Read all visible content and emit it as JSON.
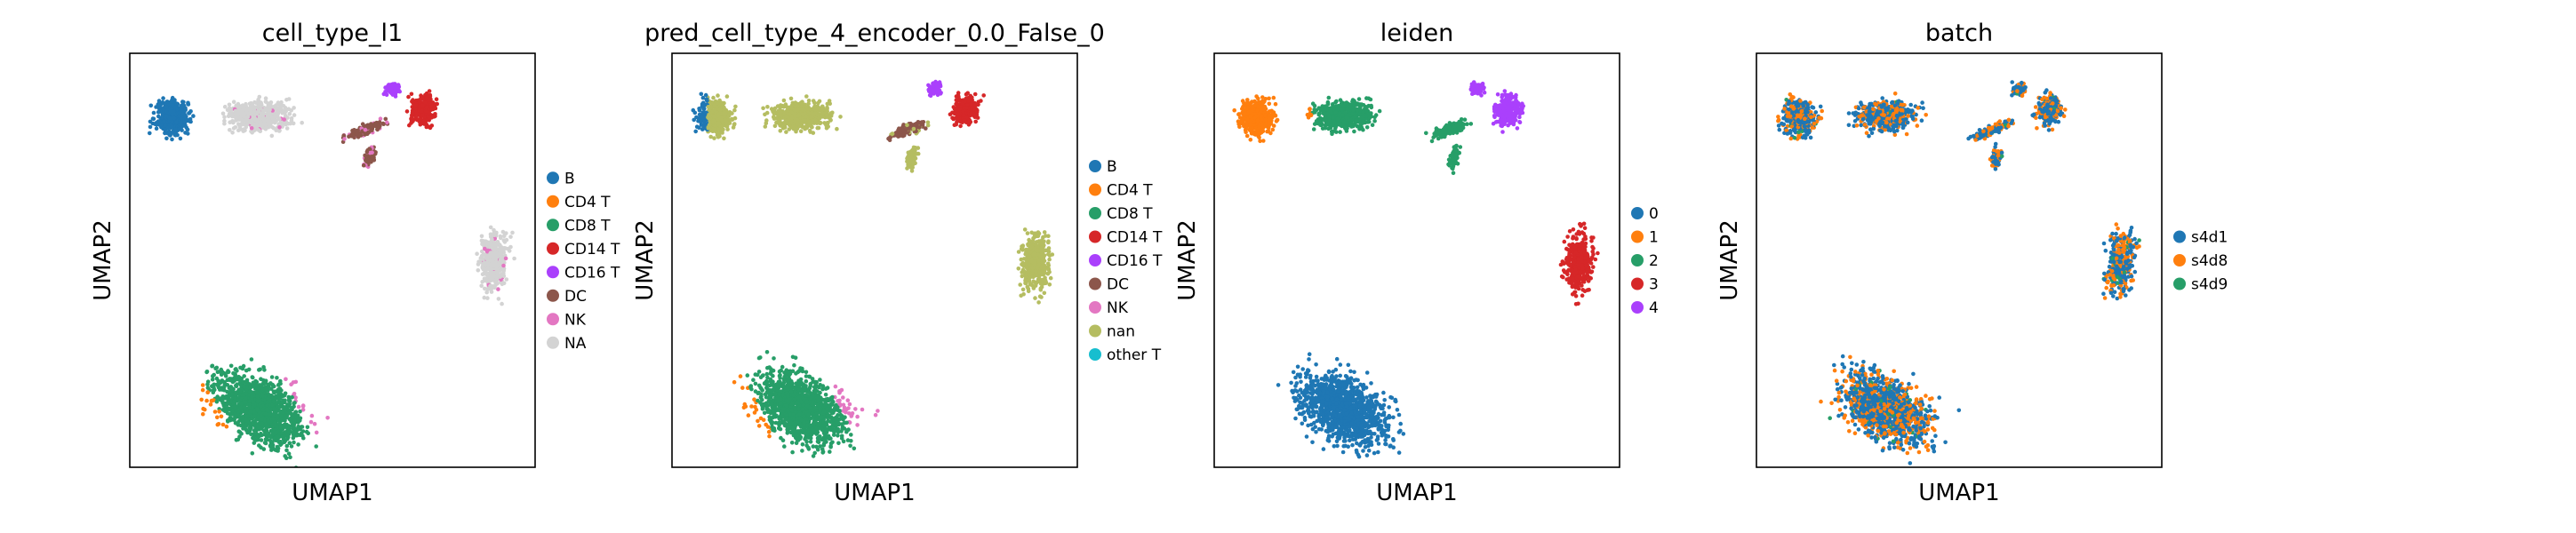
{
  "chart_data": [
    {
      "type": "scatter",
      "title": "cell_type_l1",
      "xlabel": "UMAP1",
      "ylabel": "UMAP2",
      "legend_placement": "right",
      "legend": [
        {
          "label": "B",
          "color": "#1f77b4"
        },
        {
          "label": "CD4 T",
          "color": "#ff7f0e"
        },
        {
          "label": "CD8 T",
          "color": "#279e68"
        },
        {
          "label": "CD14 T",
          "color": "#d62728"
        },
        {
          "label": "CD16 T",
          "color": "#aa40fc"
        },
        {
          "label": "DC",
          "color": "#8c564b"
        },
        {
          "label": "NK",
          "color": "#e377c2"
        },
        {
          "label": "NA",
          "color": "#d3d3d3"
        }
      ]
    },
    {
      "type": "scatter",
      "title": "pred_cell_type_4_encoder_0.0_False_0",
      "xlabel": "UMAP1",
      "ylabel": "UMAP2",
      "legend_placement": "right",
      "legend": [
        {
          "label": "B",
          "color": "#1f77b4"
        },
        {
          "label": "CD4 T",
          "color": "#ff7f0e"
        },
        {
          "label": "CD8 T",
          "color": "#279e68"
        },
        {
          "label": "CD14 T",
          "color": "#d62728"
        },
        {
          "label": "CD16 T",
          "color": "#aa40fc"
        },
        {
          "label": "DC",
          "color": "#8c564b"
        },
        {
          "label": "NK",
          "color": "#e377c2"
        },
        {
          "label": "nan",
          "color": "#b5bd61"
        },
        {
          "label": "other T",
          "color": "#17becf"
        }
      ]
    },
    {
      "type": "scatter",
      "title": "leiden",
      "xlabel": "UMAP1",
      "ylabel": "UMAP2",
      "legend_placement": "right",
      "legend": [
        {
          "label": "0",
          "color": "#1f77b4"
        },
        {
          "label": "1",
          "color": "#ff7f0e"
        },
        {
          "label": "2",
          "color": "#279e68"
        },
        {
          "label": "3",
          "color": "#d62728"
        },
        {
          "label": "4",
          "color": "#aa40fc"
        }
      ]
    },
    {
      "type": "scatter",
      "title": "batch",
      "xlabel": "UMAP1",
      "ylabel": "UMAP2",
      "legend_placement": "right",
      "legend": [
        {
          "label": "s4d1",
          "color": "#1f77b4"
        },
        {
          "label": "s4d8",
          "color": "#ff7f0e"
        },
        {
          "label": "s4d9",
          "color": "#279e68"
        }
      ]
    }
  ]
}
